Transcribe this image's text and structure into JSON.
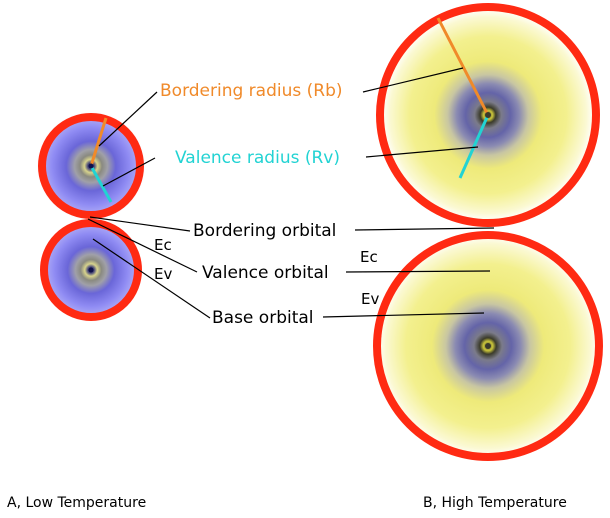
{
  "labels": {
    "bordering_radius": "Bordering radius (Rb)",
    "valence_radius": "Valence radius (Rv)",
    "bordering_orbital": "Bordering orbital",
    "valence_orbital": "Valence orbital",
    "base_orbital": "Base orbital",
    "ec_left": "Ec",
    "ev_left": "Ev",
    "ec_right": "Ec",
    "ev_right": "Ev"
  },
  "captions": {
    "low_temperature": "A, Low Temperature",
    "high_temperature": "B, High Temperature"
  },
  "colors": {
    "bordering_ring": "#ff2a12",
    "bordering_radius_line": "#f08a2a",
    "valence_radius_line": "#22d3d3",
    "leader_line": "#000000",
    "low_temp_glow": "#8a86f2",
    "high_temp_glow": "#f2ef6e"
  }
}
